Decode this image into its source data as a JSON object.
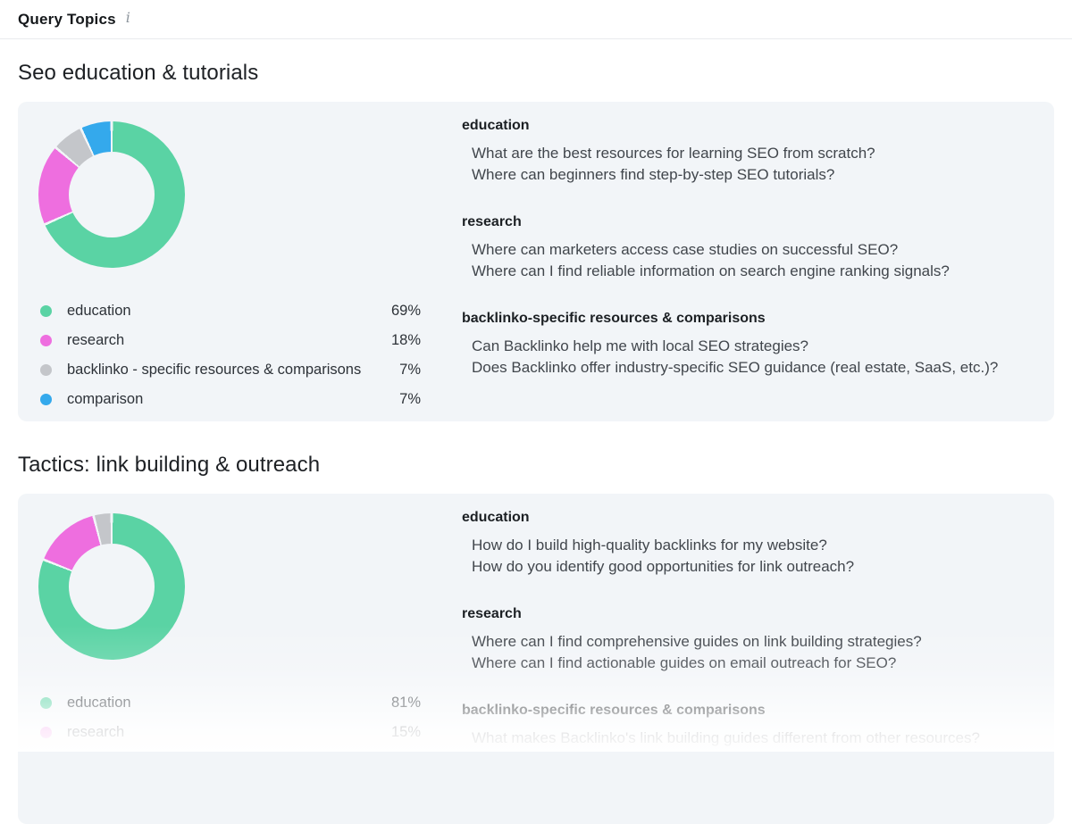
{
  "header": {
    "title": "Query Topics",
    "info_icon": "i"
  },
  "colors": {
    "education": "#5AD3A4",
    "research": "#EE6EDF",
    "backlinko_specific": "#C4C6CA",
    "comparison": "#34A9EC",
    "card_background": "#F2F5F8"
  },
  "chart_data": [
    {
      "type": "pie",
      "subtype": "donut",
      "title": "Seo education & tutorials",
      "categories": [
        "education",
        "research",
        "backlinko-specific resources & comparisons",
        "comparison"
      ],
      "values": [
        69,
        18,
        7,
        7
      ],
      "unit": "%",
      "colors": [
        "#5AD3A4",
        "#EE6EDF",
        "#C4C6CA",
        "#34A9EC"
      ],
      "gap_color": "#F2F5F8",
      "legend_position": "below"
    },
    {
      "type": "pie",
      "subtype": "donut",
      "title": "Tactics: link building & outreach",
      "categories": [
        "education",
        "research",
        "backlinko-specific resources & comparisons"
      ],
      "values": [
        81,
        15,
        4
      ],
      "unit": "%",
      "colors": [
        "#5AD3A4",
        "#EE6EDF",
        "#C4C6CA"
      ],
      "gap_color": "#F2F5F8",
      "legend_position": "below"
    }
  ],
  "sections": [
    {
      "title": "Seo education & tutorials",
      "legend": [
        {
          "label": "education",
          "percent": "69%",
          "color": "#5AD3A4"
        },
        {
          "label": "research",
          "percent": "18%",
          "color": "#EE6EDF"
        },
        {
          "label": "backlinko - specific resources & comparisons",
          "percent": "7%",
          "color": "#C4C6CA"
        },
        {
          "label": "comparison",
          "percent": "7%",
          "color": "#34A9EC"
        }
      ],
      "groups": [
        {
          "name": "education",
          "questions": [
            "What are the best resources for learning SEO from scratch?",
            "Where can beginners find step-by-step SEO tutorials?"
          ]
        },
        {
          "name": "research",
          "questions": [
            "Where can marketers access case studies on successful SEO?",
            "Where can I find reliable information on search engine ranking signals?"
          ]
        },
        {
          "name": "backlinko-specific resources & comparisons",
          "questions": [
            "Can Backlinko help me with local SEO strategies?",
            "Does Backlinko offer industry-specific SEO guidance (real estate, SaaS, etc.)?"
          ]
        }
      ]
    },
    {
      "title": "Tactics: link building & outreach",
      "legend": [
        {
          "label": "education",
          "percent": "81%",
          "color": "#5AD3A4"
        },
        {
          "label": "research",
          "percent": "15%",
          "color": "#EE6EDF"
        }
      ],
      "groups": [
        {
          "name": "education",
          "questions": [
            "How do I build high-quality backlinks for my website?",
            "How do you identify good opportunities for link outreach?"
          ]
        },
        {
          "name": "research",
          "questions": [
            "Where can I find comprehensive guides on link building strategies?",
            "Where can I find actionable guides on email outreach for SEO?"
          ]
        },
        {
          "name": "backlinko-specific resources & comparisons",
          "questions": [
            "What makes Backlinko's link building guides different from other resources?"
          ]
        }
      ]
    }
  ]
}
